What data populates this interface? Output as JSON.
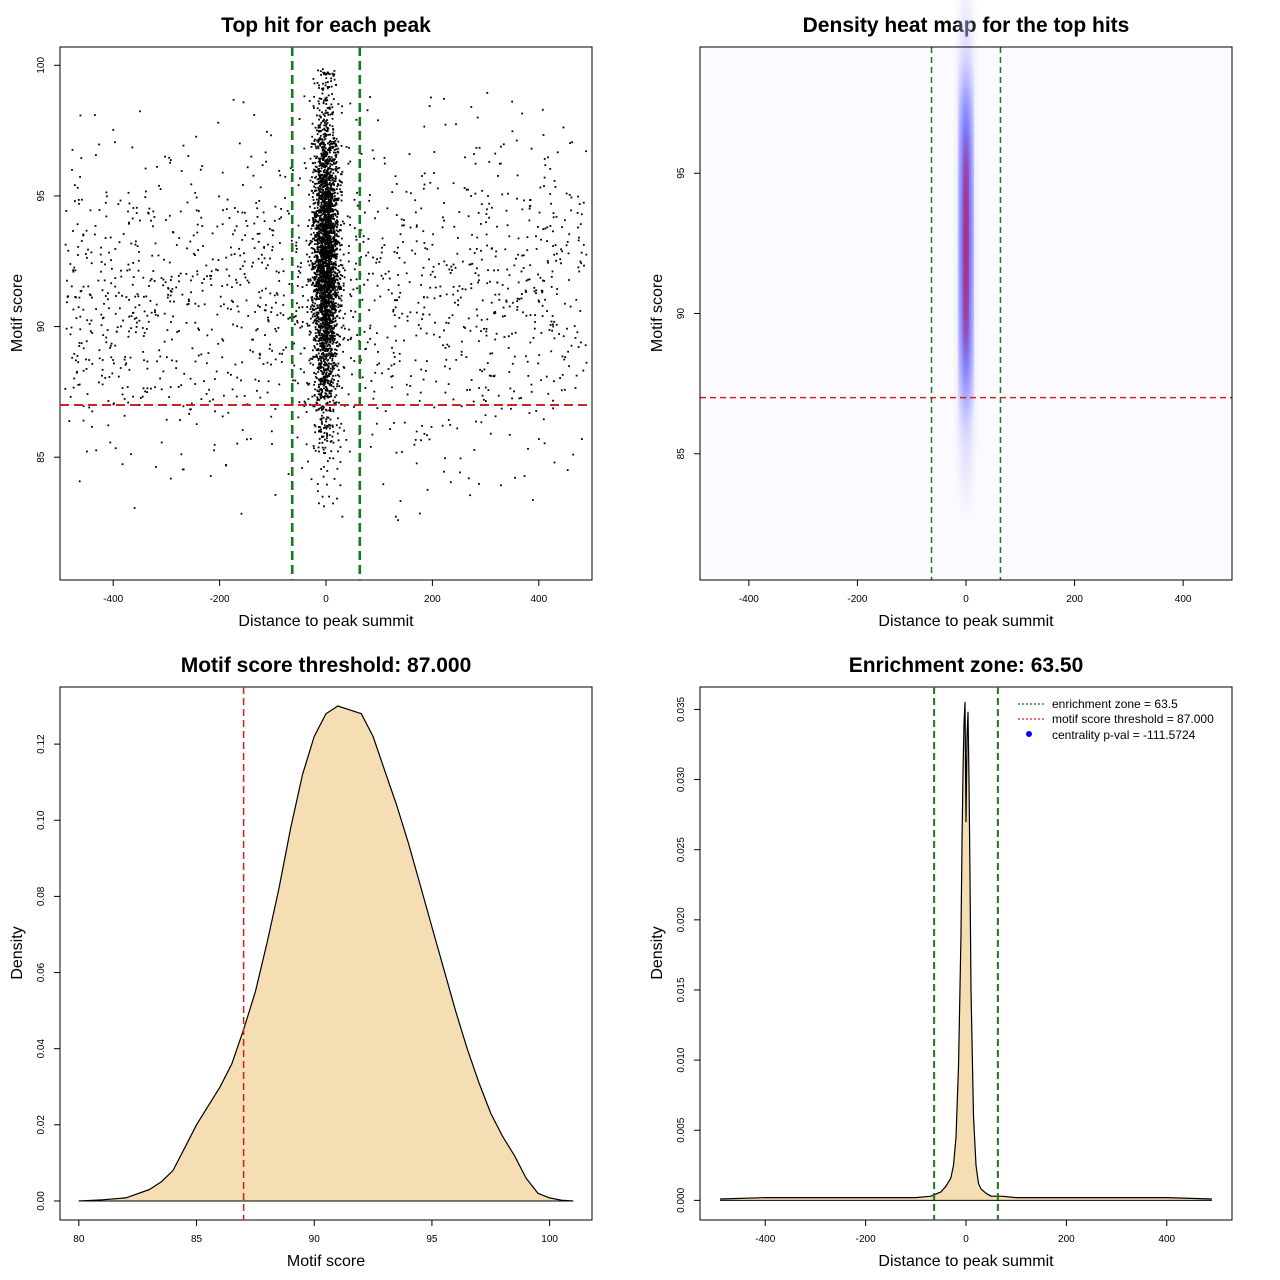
{
  "colors": {
    "zone_line": "#1a7a1a",
    "threshold_line": "#d62020",
    "density_fill": "#f5deb3",
    "point": "#000000",
    "heat_low": "#0000ff",
    "heat_high": "#ff0000"
  },
  "chart_data": [
    {
      "id": "scatter",
      "type": "scatter",
      "title": "Top hit for each peak",
      "xlabel": "Distance to peak summit",
      "ylabel": "Motif score",
      "xlim": [
        -500,
        500
      ],
      "ylim": [
        80.3,
        100.7
      ],
      "xticks": [
        -400,
        -200,
        0,
        200,
        400
      ],
      "xtick_labels": [
        "-400",
        "-200",
        "0",
        "200",
        "400"
      ],
      "yticks": [
        85,
        90,
        95,
        100
      ],
      "ytick_labels": [
        "85",
        "90",
        "95",
        "100"
      ],
      "vlines": [
        -63.5,
        63.5
      ],
      "hline": 87.0,
      "distribution": {
        "central_count": 3000,
        "central_sd_distance": 12,
        "central_mean_score": 92.5,
        "central_sd_score": 3.0,
        "background_count": 1500,
        "background_distance_range": [
          -490,
          490
        ],
        "background_mean_score": 91,
        "background_sd_score": 3.0
      }
    },
    {
      "id": "heatmap",
      "type": "heatmap",
      "title": "Density heat map for the top hits",
      "xlabel": "Distance to peak summit",
      "ylabel": "Motif score",
      "xlim": [
        -490,
        490
      ],
      "ylim": [
        80.5,
        99.5
      ],
      "xticks": [
        -400,
        -200,
        0,
        200,
        400
      ],
      "xtick_labels": [
        "-400",
        "-200",
        "0",
        "200",
        "400"
      ],
      "yticks": [
        85,
        90,
        95
      ],
      "ytick_labels": [
        "85",
        "90",
        "95"
      ],
      "vlines": [
        -63.5,
        63.5
      ],
      "hline": 87.0,
      "hotspot": {
        "x": 0,
        "y": 92.5,
        "sd_x": 8,
        "sd_y": 3.5
      }
    },
    {
      "id": "score_density",
      "type": "area",
      "title": "Motif score threshold: 87.000",
      "xlabel": "Motif score",
      "ylabel": "Density",
      "xlim": [
        79.2,
        101.8
      ],
      "ylim": [
        -0.005,
        0.135
      ],
      "xticks": [
        80,
        85,
        90,
        95,
        100
      ],
      "xtick_labels": [
        "80",
        "85",
        "90",
        "95",
        "100"
      ],
      "yticks": [
        0,
        0.02,
        0.04,
        0.06,
        0.08,
        0.1,
        0.12
      ],
      "ytick_labels": [
        "0.00",
        "0.02",
        "0.04",
        "0.06",
        "0.08",
        "0.10",
        "0.12"
      ],
      "vline": 87.0,
      "x": [
        80,
        81,
        82,
        83,
        83.5,
        84,
        84.5,
        85,
        85.5,
        86,
        86.5,
        87,
        87.5,
        88,
        88.5,
        89,
        89.5,
        90,
        90.5,
        91,
        91.5,
        92,
        92.5,
        93,
        93.5,
        94,
        94.5,
        95,
        95.5,
        96,
        96.5,
        97,
        97.5,
        98,
        98.5,
        99,
        99.5,
        100,
        100.5,
        101
      ],
      "y": [
        0.0,
        0.0003,
        0.0008,
        0.003,
        0.005,
        0.008,
        0.014,
        0.02,
        0.025,
        0.03,
        0.036,
        0.045,
        0.055,
        0.068,
        0.082,
        0.098,
        0.112,
        0.122,
        0.128,
        0.13,
        0.129,
        0.128,
        0.122,
        0.113,
        0.104,
        0.094,
        0.083,
        0.072,
        0.061,
        0.05,
        0.04,
        0.031,
        0.023,
        0.017,
        0.012,
        0.006,
        0.002,
        0.0008,
        0.0002,
        0.0
      ]
    },
    {
      "id": "distance_density",
      "type": "area",
      "title": "Enrichment zone: 63.50",
      "xlabel": "Distance to peak summit",
      "ylabel": "Density",
      "xlim": [
        -530,
        530
      ],
      "ylim": [
        -0.0014,
        0.0366
      ],
      "xticks": [
        -400,
        -200,
        0,
        200,
        400
      ],
      "xtick_labels": [
        "-400",
        "-200",
        "0",
        "200",
        "400"
      ],
      "yticks": [
        0,
        0.005,
        0.01,
        0.015,
        0.02,
        0.025,
        0.03,
        0.035
      ],
      "ytick_labels": [
        "0.000",
        "0.005",
        "0.010",
        "0.015",
        "0.020",
        "0.025",
        "0.030",
        "0.035"
      ],
      "vlines": [
        -63.5,
        63.5
      ],
      "x": [
        -490,
        -400,
        -300,
        -200,
        -100,
        -70,
        -50,
        -40,
        -30,
        -25,
        -20,
        -15,
        -10,
        -8,
        -6,
        -4,
        -2,
        0,
        2,
        4,
        6,
        8,
        10,
        15,
        20,
        25,
        30,
        40,
        50,
        70,
        100,
        200,
        300,
        400,
        490
      ],
      "y": [
        0.0001,
        0.0002,
        0.0002,
        0.0002,
        0.0002,
        0.0003,
        0.0006,
        0.001,
        0.0016,
        0.0025,
        0.0045,
        0.0095,
        0.019,
        0.0255,
        0.0305,
        0.034,
        0.0355,
        0.027,
        0.033,
        0.0348,
        0.03,
        0.023,
        0.015,
        0.006,
        0.0025,
        0.0012,
        0.0008,
        0.0005,
        0.0003,
        0.0003,
        0.0002,
        0.0002,
        0.0002,
        0.0002,
        0.0001
      ],
      "legend": {
        "placement": "top-right",
        "entries": [
          {
            "label": "enrichment zone = 63.5",
            "style": "dotted-green"
          },
          {
            "label": "motif score threshold = 87.000",
            "style": "dotted-red"
          },
          {
            "label": "centrality p-val = -111.5724",
            "style": "blue-dot"
          }
        ]
      }
    }
  ]
}
